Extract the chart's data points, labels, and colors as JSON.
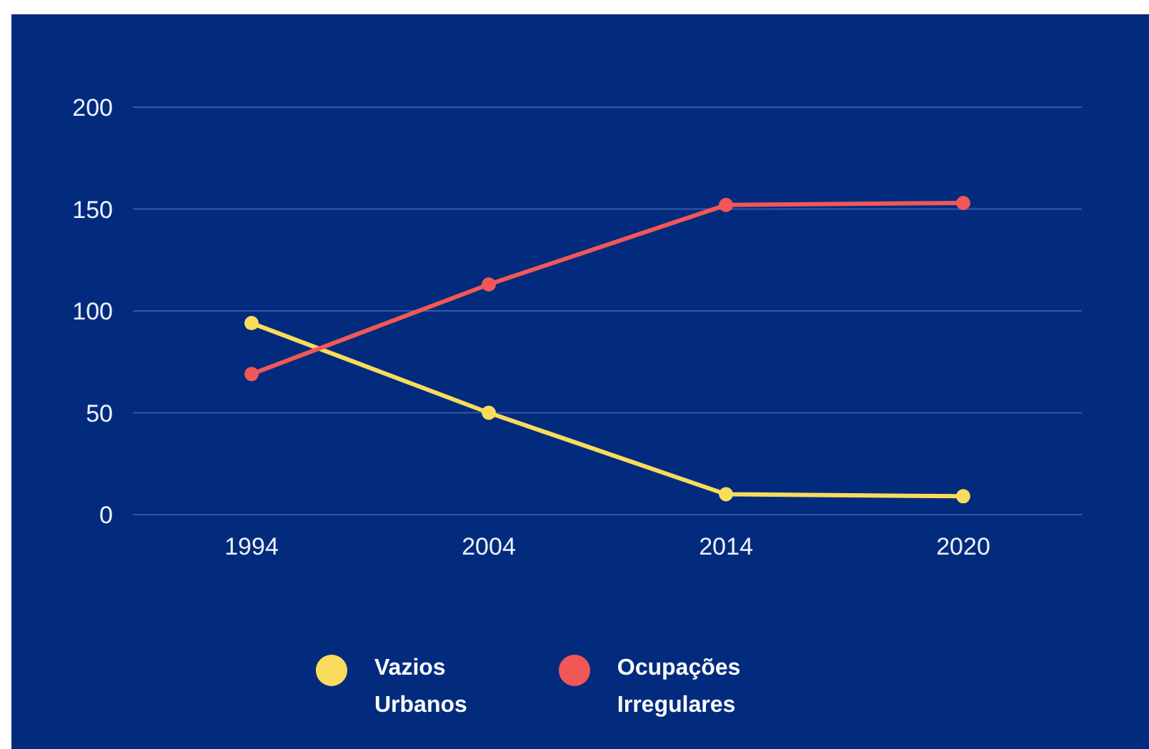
{
  "chart_data": {
    "type": "line",
    "categories": [
      "1994",
      "2004",
      "2014",
      "2020"
    ],
    "series": [
      {
        "name": "Vazios Urbanos",
        "color": "#f9dc5c",
        "values": [
          94,
          50,
          10,
          9
        ]
      },
      {
        "name": "Ocupações Irregulares",
        "color": "#f25757",
        "values": [
          69,
          113,
          152,
          153
        ]
      }
    ],
    "ylim": [
      0,
      200
    ],
    "yticks": [
      0,
      50,
      100,
      150,
      200
    ],
    "grid": "y",
    "legend": "bottom",
    "marker": "circle",
    "line_style": "solid"
  }
}
